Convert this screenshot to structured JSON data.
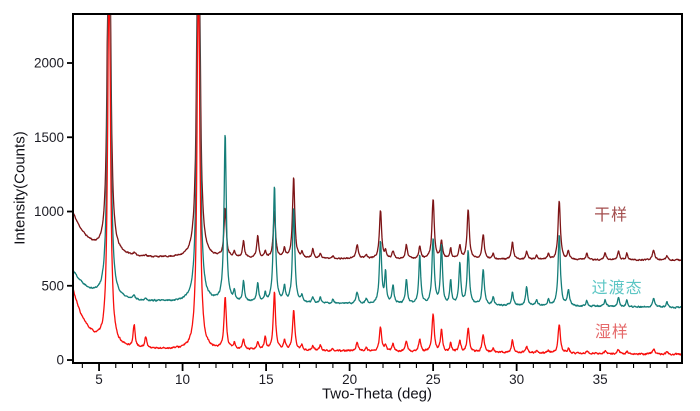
{
  "figure": {
    "background": "#ffffff",
    "axis_color": "#000000",
    "tick_label_color": "#1c1c24"
  },
  "chart_data": {
    "type": "line",
    "title": "",
    "xlabel": "Two-Theta (deg)",
    "ylabel": "Intensity(Counts)",
    "xlim": [
      3.44,
      39.9
    ],
    "ylim": [
      -20,
      2330
    ],
    "x_major_ticks": [
      5,
      10,
      15,
      20,
      25,
      30,
      35
    ],
    "x_minor_step": 1,
    "y_major_ticks": [
      0,
      500,
      1000,
      1500,
      2000
    ],
    "grid": false,
    "legend_position": "right-inside-stacked",
    "point_step_deg": 0.025,
    "series": [
      {
        "id": "dry",
        "name": "干样",
        "color": "#7d1416",
        "label_color": "#a34e4e",
        "baseline": 690,
        "baseline_slope": -0.5,
        "edge_amp": 300,
        "edge_decay": 1.0,
        "noise": 7,
        "seed": 11,
        "label_pos": {
          "x": 35.66,
          "y": 990
        }
      },
      {
        "id": "transition",
        "name": "过渡态",
        "color": "#157e79",
        "label_color": "#5cc6c4",
        "baseline": 398,
        "baseline_slope": -1.2,
        "edge_amp": 205,
        "edge_decay": 1.0,
        "noise": 8,
        "seed": 22,
        "label_pos": {
          "x": 36.02,
          "y": 497
        }
      },
      {
        "id": "wet",
        "name": "湿样",
        "color": "#f80e0c",
        "label_color": "#e5696a",
        "baseline": 78,
        "baseline_slope": -1.1,
        "edge_amp": 400,
        "edge_decay": 0.85,
        "noise": 9,
        "seed": 33,
        "label_pos": {
          "x": 35.7,
          "y": 202
        }
      }
    ],
    "peaks_format": [
      "two_theta_deg",
      "half_width_deg",
      "amp_dry",
      "amp_transition",
      "amp_wet"
    ],
    "peaks": [
      [
        5.6,
        0.09,
        3500,
        3200,
        2800
      ],
      [
        7.1,
        0.07,
        15,
        25,
        150
      ],
      [
        7.8,
        0.07,
        10,
        15,
        75
      ],
      [
        10.95,
        0.09,
        3500,
        3200,
        2800
      ],
      [
        12.55,
        0.08,
        330,
        1135,
        350
      ],
      [
        13.1,
        0.06,
        35,
        55,
        40
      ],
      [
        13.65,
        0.07,
        110,
        135,
        65
      ],
      [
        14.5,
        0.07,
        150,
        130,
        55
      ],
      [
        14.95,
        0.06,
        40,
        55,
        90
      ],
      [
        15.5,
        0.08,
        310,
        785,
        390
      ],
      [
        16.1,
        0.07,
        60,
        95,
        60
      ],
      [
        16.65,
        0.08,
        545,
        640,
        270
      ],
      [
        17.15,
        0.06,
        40,
        45,
        35
      ],
      [
        17.8,
        0.07,
        60,
        35,
        30
      ],
      [
        18.25,
        0.06,
        35,
        40,
        45
      ],
      [
        19.0,
        0.06,
        15,
        25,
        15
      ],
      [
        20.45,
        0.08,
        95,
        75,
        60
      ],
      [
        21.0,
        0.06,
        25,
        35,
        25
      ],
      [
        21.85,
        0.08,
        320,
        420,
        160
      ],
      [
        22.15,
        0.06,
        40,
        200,
        40
      ],
      [
        22.6,
        0.07,
        50,
        120,
        50
      ],
      [
        23.4,
        0.07,
        95,
        160,
        75
      ],
      [
        24.2,
        0.07,
        85,
        330,
        85
      ],
      [
        25.0,
        0.08,
        400,
        440,
        250
      ],
      [
        25.5,
        0.07,
        120,
        400,
        150
      ],
      [
        26.05,
        0.06,
        70,
        160,
        65
      ],
      [
        26.6,
        0.07,
        90,
        270,
        75
      ],
      [
        27.1,
        0.08,
        330,
        360,
        160
      ],
      [
        28.0,
        0.08,
        160,
        230,
        115
      ],
      [
        28.6,
        0.06,
        40,
        60,
        30
      ],
      [
        29.75,
        0.07,
        115,
        90,
        85
      ],
      [
        30.6,
        0.07,
        55,
        130,
        40
      ],
      [
        31.2,
        0.06,
        30,
        40,
        15
      ],
      [
        31.9,
        0.06,
        40,
        40,
        15
      ],
      [
        32.55,
        0.08,
        395,
        480,
        195
      ],
      [
        33.1,
        0.07,
        55,
        105,
        30
      ],
      [
        34.2,
        0.07,
        40,
        35,
        15
      ],
      [
        35.3,
        0.07,
        45,
        45,
        20
      ],
      [
        36.1,
        0.07,
        60,
        55,
        25
      ],
      [
        36.6,
        0.06,
        45,
        40,
        15
      ],
      [
        38.2,
        0.08,
        70,
        55,
        35
      ],
      [
        39.0,
        0.06,
        30,
        35,
        20
      ]
    ]
  }
}
